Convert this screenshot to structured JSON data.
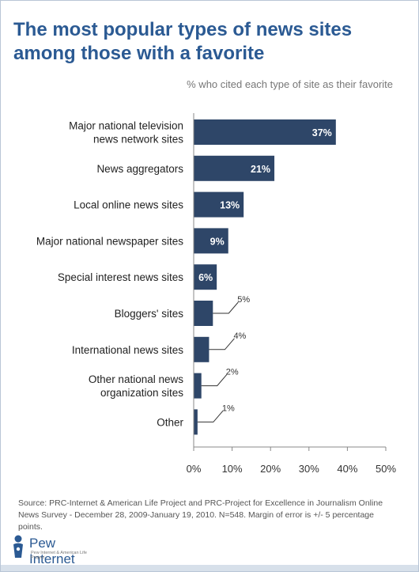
{
  "title_lines": [
    "The most popular types of news sites",
    "among those with a favorite"
  ],
  "subtitle": "% who cited each type of site as their favorite",
  "chart_data": {
    "type": "bar",
    "orientation": "horizontal",
    "categories": [
      [
        "Major national television",
        "news network sites"
      ],
      [
        "News aggregators"
      ],
      [
        "Local online news sites"
      ],
      [
        "Major national newspaper sites"
      ],
      [
        "Special interest news sites"
      ],
      [
        "Bloggers' sites"
      ],
      [
        "International news sites"
      ],
      [
        "Other national news",
        "organization sites"
      ],
      [
        "Other"
      ]
    ],
    "values": [
      37,
      21,
      13,
      9,
      6,
      5,
      4,
      2,
      1
    ],
    "value_labels": [
      "37%",
      "21%",
      "13%",
      "9%",
      "6%",
      "5%",
      "4%",
      "2%",
      "1%"
    ],
    "label_inside": [
      true,
      true,
      true,
      true,
      true,
      false,
      false,
      false,
      false
    ],
    "xlim": [
      0,
      50
    ],
    "xticks": [
      0,
      10,
      20,
      30,
      40,
      50
    ],
    "xtick_labels": [
      "0%",
      "10%",
      "20%",
      "30%",
      "40%",
      "50%"
    ],
    "bar_color": "#2e4668",
    "grid": false
  },
  "source": "Source: PRC-Internet & American Life Project and PRC-Project for Excellence in Journalism Online News Survey - December 28, 2009-January 19, 2010. N=548. Margin of error is +/- 5 percentage points.",
  "logo": {
    "name": "Pew Internet",
    "tagline": "Pew Internet & American Life Project",
    "icon": "pew-figure-icon"
  }
}
